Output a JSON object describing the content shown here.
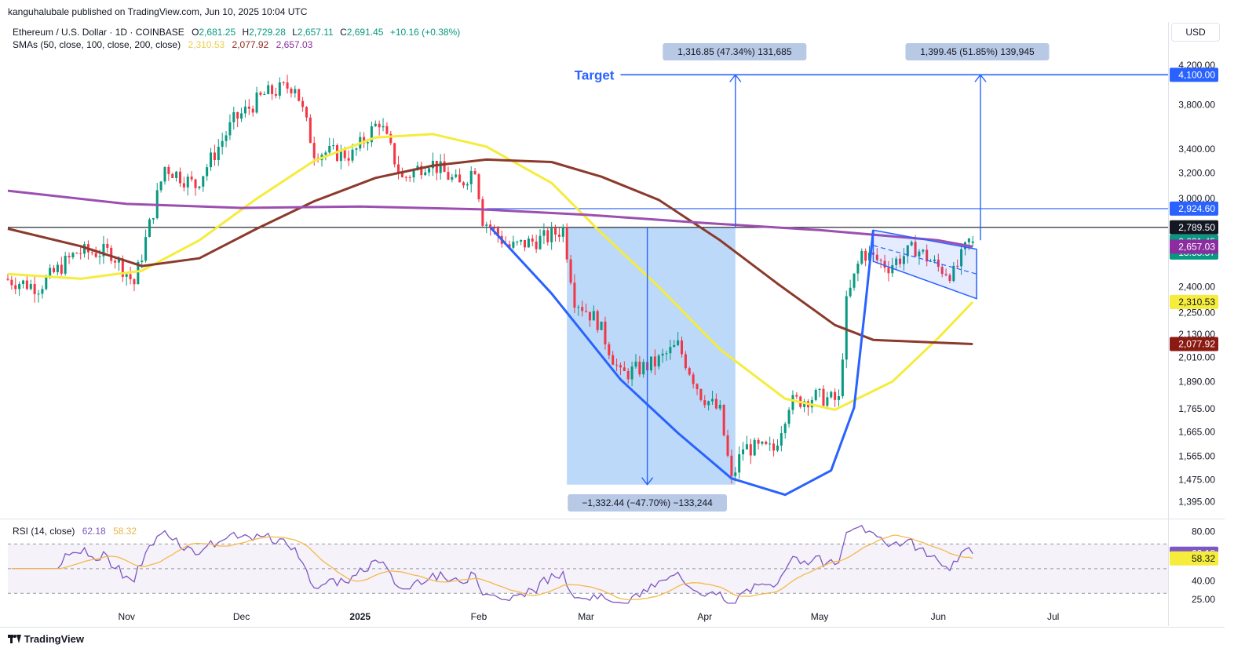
{
  "publisher_line": "kanguhalubale published on TradingView.com, Jun 10, 2025 10:04 UTC",
  "symbol": {
    "title": "Ethereum / U.S. Dollar · 1D · COINBASE",
    "o_label": "O",
    "o": "2,681.25",
    "h_label": "H",
    "h": "2,729.28",
    "l_label": "L",
    "l": "2,657.11",
    "c_label": "C",
    "c": "2,691.45",
    "change": "+10.16 (+0.38%)"
  },
  "sma_legend": {
    "label": "SMAs (50, close, 100, close, 200, close)",
    "sma50": "2,310.53",
    "sma100": "2,077.92",
    "sma200": "2,657.03"
  },
  "currency": "USD",
  "rsi_legend": {
    "label": "RSI (14, close)",
    "rsi": "62.18",
    "ma": "58.32"
  },
  "brand": "TradingView",
  "colors": {
    "up": "#089981",
    "down": "#f23645",
    "sma50": "#f5ec3c",
    "sma100": "#8b3a2c",
    "sma200": "#9c4fb0",
    "pattern": "#2962ff",
    "box": "#90bff5"
  },
  "chart_data": {
    "type": "candlestick",
    "title": "Ethereum / U.S. Dollar · 1D · COINBASE",
    "y_scale": "log",
    "ylim": [
      1340,
      4380
    ],
    "xlim": [
      "2024-10-01",
      "2025-07-31"
    ],
    "y_ticks": [
      "4,200.00",
      "3,800.00",
      "3,400.00",
      "3,200.00",
      "3,000.00",
      "2,400.00",
      "2,250.00",
      "2,130.00",
      "2,010.00",
      "1,890.00",
      "1,765.00",
      "1,665.00",
      "1,565.00",
      "1,475.00",
      "1,395.00"
    ],
    "y_tick_values": [
      4200,
      3800,
      3400,
      3200,
      3000,
      2400,
      2250,
      2130,
      2010,
      1890,
      1765,
      1665,
      1565,
      1475,
      1395
    ],
    "x_ticks": [
      {
        "date": "2024-11-01",
        "label": "Nov"
      },
      {
        "date": "2024-12-01",
        "label": "Dec"
      },
      {
        "date": "2025-01-01",
        "label": "2025"
      },
      {
        "date": "2025-02-01",
        "label": "Feb"
      },
      {
        "date": "2025-03-01",
        "label": "Mar"
      },
      {
        "date": "2025-04-01",
        "label": "Apr"
      },
      {
        "date": "2025-05-01",
        "label": "May"
      },
      {
        "date": "2025-06-01",
        "label": "Jun"
      },
      {
        "date": "2025-07-01",
        "label": "Jul"
      }
    ],
    "series": [
      {
        "name": "ETH/USD",
        "kind": "ohlc",
        "last": {
          "date": "2025-06-10",
          "o": 2681.25,
          "h": 2729.28,
          "l": 2657.11,
          "c": 2691.45
        }
      },
      {
        "name": "SMA 50",
        "last": 2310.53,
        "points": [
          [
            "2024-10-01",
            2480
          ],
          [
            "2024-10-20",
            2450
          ],
          [
            "2024-11-05",
            2500
          ],
          [
            "2024-11-20",
            2700
          ],
          [
            "2024-12-05",
            3000
          ],
          [
            "2024-12-20",
            3300
          ],
          [
            "2025-01-05",
            3500
          ],
          [
            "2025-01-20",
            3530
          ],
          [
            "2025-02-03",
            3420
          ],
          [
            "2025-02-20",
            3120
          ],
          [
            "2025-03-05",
            2750
          ],
          [
            "2025-03-20",
            2400
          ],
          [
            "2025-04-05",
            2050
          ],
          [
            "2025-04-22",
            1810
          ],
          [
            "2025-05-05",
            1760
          ],
          [
            "2025-05-20",
            1890
          ],
          [
            "2025-06-01",
            2110
          ],
          [
            "2025-06-10",
            2310.53
          ]
        ]
      },
      {
        "name": "SMA 100",
        "last": 2077.92,
        "points": [
          [
            "2024-10-01",
            2780
          ],
          [
            "2024-10-20",
            2660
          ],
          [
            "2024-11-05",
            2530
          ],
          [
            "2024-11-20",
            2580
          ],
          [
            "2024-12-05",
            2780
          ],
          [
            "2024-12-20",
            2980
          ],
          [
            "2025-01-05",
            3160
          ],
          [
            "2025-01-20",
            3260
          ],
          [
            "2025-02-03",
            3310
          ],
          [
            "2025-02-20",
            3290
          ],
          [
            "2025-03-05",
            3170
          ],
          [
            "2025-03-20",
            2990
          ],
          [
            "2025-04-05",
            2700
          ],
          [
            "2025-04-20",
            2420
          ],
          [
            "2025-05-05",
            2180
          ],
          [
            "2025-05-15",
            2100
          ],
          [
            "2025-06-01",
            2085
          ],
          [
            "2025-06-10",
            2077.92
          ]
        ]
      },
      {
        "name": "SMA 200",
        "last": 2657.03,
        "points": [
          [
            "2024-10-01",
            3060
          ],
          [
            "2024-11-01",
            2960
          ],
          [
            "2024-12-01",
            2930
          ],
          [
            "2025-01-01",
            2940
          ],
          [
            "2025-02-01",
            2920
          ],
          [
            "2025-03-01",
            2880
          ],
          [
            "2025-04-01",
            2820
          ],
          [
            "2025-05-01",
            2770
          ],
          [
            "2025-06-01",
            2700
          ],
          [
            "2025-06-10",
            2657.03
          ]
        ]
      }
    ],
    "price_labels": {
      "target": "4,100.00",
      "level_a": "2,924.60",
      "level_b": "2,789.50",
      "last": "2,691.45",
      "countdown": "13:55:57",
      "sma200": "2,657.03",
      "sma50": "2,310.53",
      "sma100": "2,077.92"
    },
    "annotations": {
      "target_label": "Target",
      "target_price": 4100,
      "level_a": 2924.6,
      "level_b": 2789.5,
      "measure_up_1": "1,316.85 (47.34%) 131,685",
      "measure_up_2": "1,399.45 (51.85%) 139,945",
      "measure_down": "−1,332.44 (−47.70%) −133,244",
      "box": {
        "from": "2025-02-24",
        "to": "2025-04-09",
        "top": 2789.5,
        "bottom": 1457
      }
    },
    "rsi": {
      "label": "RSI (14, close)",
      "ylim": [
        20,
        90
      ],
      "ticks": [
        "80.00",
        "40.00",
        "25.00"
      ],
      "tick_values": [
        80,
        40,
        25
      ],
      "band": [
        30,
        70
      ],
      "last": 62.18,
      "ma_last": 58.32
    }
  }
}
